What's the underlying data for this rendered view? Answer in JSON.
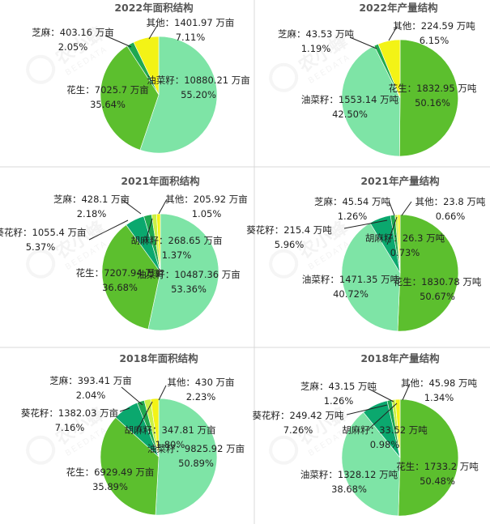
{
  "chart_data": [
    {
      "type": "pie",
      "title": "2022年面积结构",
      "slices": [
        {
          "name": "油菜籽",
          "value": 10880.21,
          "unit": "万亩",
          "pct": "55.20%"
        },
        {
          "name": "花生",
          "value": 7025.7,
          "unit": "万亩",
          "pct": "35.64%"
        },
        {
          "name": "芝麻",
          "value": 403.16,
          "unit": "万亩",
          "pct": "2.05%"
        },
        {
          "name": "其他",
          "value": 1401.97,
          "unit": "万亩",
          "pct": "7.11%"
        }
      ]
    },
    {
      "type": "pie",
      "title": "2022年产量结构",
      "slices": [
        {
          "name": "花生",
          "value": 1832.95,
          "unit": "万吨",
          "pct": "50.16%"
        },
        {
          "name": "油菜籽",
          "value": 1553.14,
          "unit": "万吨",
          "pct": "42.50%"
        },
        {
          "name": "芝麻",
          "value": 43.53,
          "unit": "万吨",
          "pct": "1.19%"
        },
        {
          "name": "其他",
          "value": 224.59,
          "unit": "万吨",
          "pct": "6.15%"
        }
      ]
    },
    {
      "type": "pie",
      "title": "2021年面积结构",
      "slices": [
        {
          "name": "油菜籽",
          "value": 10487.36,
          "unit": "万亩",
          "pct": "53.36%"
        },
        {
          "name": "花生",
          "value": 7207.94,
          "unit": "万亩",
          "pct": "36.68%"
        },
        {
          "name": "葵花籽",
          "value": 1055.4,
          "unit": "万亩",
          "pct": "5.37%"
        },
        {
          "name": "芝麻",
          "value": 428.1,
          "unit": "万亩",
          "pct": "2.18%"
        },
        {
          "name": "胡麻籽",
          "value": 268.65,
          "unit": "万亩",
          "pct": "1.37%"
        },
        {
          "name": "其他",
          "value": 205.92,
          "unit": "万亩",
          "pct": "1.05%"
        }
      ]
    },
    {
      "type": "pie",
      "title": "2021年产量结构",
      "slices": [
        {
          "name": "花生",
          "value": 1830.78,
          "unit": "万吨",
          "pct": "50.67%"
        },
        {
          "name": "油菜籽",
          "value": 1471.35,
          "unit": "万吨",
          "pct": "40.72%"
        },
        {
          "name": "葵花籽",
          "value": 215.4,
          "unit": "万吨",
          "pct": "5.96%"
        },
        {
          "name": "芝麻",
          "value": 45.54,
          "unit": "万吨",
          "pct": "1.26%"
        },
        {
          "name": "胡麻籽",
          "value": 26.3,
          "unit": "万吨",
          "pct": "0.73%"
        },
        {
          "name": "其他",
          "value": 23.8,
          "unit": "万吨",
          "pct": "0.66%"
        }
      ]
    },
    {
      "type": "pie",
      "title": "2018年面积结构",
      "slices": [
        {
          "name": "油菜籽",
          "value": 9825.92,
          "unit": "万亩",
          "pct": "50.89%"
        },
        {
          "name": "花生",
          "value": 6929.49,
          "unit": "万亩",
          "pct": "35.89%"
        },
        {
          "name": "葵花籽",
          "value": 1382.03,
          "unit": "万亩",
          "pct": "7.16%"
        },
        {
          "name": "芝麻",
          "value": 393.41,
          "unit": "万亩",
          "pct": "2.04%"
        },
        {
          "name": "胡麻籽",
          "value": 347.81,
          "unit": "万亩",
          "pct": "1.80%"
        },
        {
          "name": "其他",
          "value": 430,
          "unit": "万亩",
          "pct": "2.23%"
        }
      ]
    },
    {
      "type": "pie",
      "title": "2018年产量结构",
      "slices": [
        {
          "name": "花生",
          "value": 1733.2,
          "unit": "万吨",
          "pct": "50.48%"
        },
        {
          "name": "油菜籽",
          "value": 1328.12,
          "unit": "万吨",
          "pct": "38.68%"
        },
        {
          "name": "葵花籽",
          "value": 249.42,
          "unit": "万吨",
          "pct": "7.26%"
        },
        {
          "name": "芝麻",
          "value": 43.15,
          "unit": "万吨",
          "pct": "1.26%"
        },
        {
          "name": "胡麻籽",
          "value": 33.52,
          "unit": "万吨",
          "pct": "0.98%"
        },
        {
          "name": "其他",
          "value": 45.98,
          "unit": "万吨",
          "pct": "1.34%"
        }
      ]
    }
  ],
  "colors": {
    "油菜籽": "#7ee4a6",
    "花生": "#5cbf2e",
    "芝麻": "#1fa850",
    "其他": "#f3f316",
    "葵花籽": "#0ba86e",
    "胡麻籽": "#c9f046"
  },
  "watermark": {
    "brand_cn": "农小蜂",
    "brand_en": "BEEDATA"
  }
}
